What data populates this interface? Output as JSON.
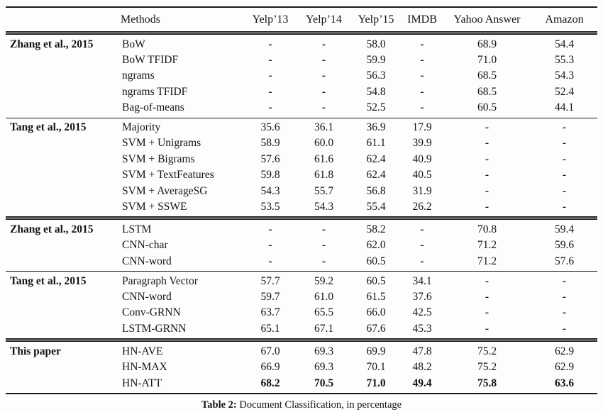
{
  "page": {
    "caption": {
      "label": "Table 2:",
      "text": "Document Classification, in percentage"
    }
  },
  "table": {
    "header": {
      "group_col": "",
      "method_col": "Methods",
      "datasets": [
        "Yelp’13",
        "Yelp’14",
        "Yelp’15",
        "IMDB",
        "Yahoo Answer",
        "Amazon"
      ]
    },
    "missing_value_symbol": "-",
    "groups": [
      {
        "label": "Zhang et al., 2015",
        "separator_above": "none",
        "rows": [
          {
            "method": "BoW",
            "values": [
              "-",
              "-",
              "58.0",
              "-",
              "68.9",
              "54.4"
            ],
            "bold": false
          },
          {
            "method": "BoW TFIDF",
            "values": [
              "-",
              "-",
              "59.9",
              "-",
              "71.0",
              "55.3"
            ],
            "bold": false
          },
          {
            "method": "ngrams",
            "values": [
              "-",
              "-",
              "56.3",
              "-",
              "68.5",
              "54.3"
            ],
            "bold": false
          },
          {
            "method": "ngrams TFIDF",
            "values": [
              "-",
              "-",
              "54.8",
              "-",
              "68.5",
              "52.4"
            ],
            "bold": false
          },
          {
            "method": "Bag-of-means",
            "values": [
              "-",
              "-",
              "52.5",
              "-",
              "60.5",
              "44.1"
            ],
            "bold": false
          }
        ]
      },
      {
        "label": "Tang et al., 2015",
        "separator_above": "single",
        "rows": [
          {
            "method": "Majority",
            "values": [
              "35.6",
              "36.1",
              "36.9",
              "17.9",
              "-",
              "-"
            ],
            "bold": false
          },
          {
            "method": "SVM + Unigrams",
            "values": [
              "58.9",
              "60.0",
              "61.1",
              "39.9",
              "-",
              "-"
            ],
            "bold": false
          },
          {
            "method": "SVM + Bigrams",
            "values": [
              "57.6",
              "61.6",
              "62.4",
              "40.9",
              "-",
              "-"
            ],
            "bold": false
          },
          {
            "method": "SVM + TextFeatures",
            "values": [
              "59.8",
              "61.8",
              "62.4",
              "40.5",
              "-",
              "-"
            ],
            "bold": false
          },
          {
            "method": "SVM + AverageSG",
            "values": [
              "54.3",
              "55.7",
              "56.8",
              "31.9",
              "-",
              "-"
            ],
            "bold": false
          },
          {
            "method": "SVM + SSWE",
            "values": [
              "53.5",
              "54.3",
              "55.4",
              "26.2",
              "-",
              "-"
            ],
            "bold": false
          }
        ]
      },
      {
        "label": "Zhang et al., 2015",
        "separator_above": "double",
        "rows": [
          {
            "method": "LSTM",
            "values": [
              "-",
              "-",
              "58.2",
              "-",
              "70.8",
              "59.4"
            ],
            "bold": false
          },
          {
            "method": "CNN-char",
            "values": [
              "-",
              "-",
              "62.0",
              "-",
              "71.2",
              "59.6"
            ],
            "bold": false
          },
          {
            "method": "CNN-word",
            "values": [
              "-",
              "-",
              "60.5",
              "-",
              "71.2",
              "57.6"
            ],
            "bold": false
          }
        ]
      },
      {
        "label": "Tang et al., 2015",
        "separator_above": "single",
        "rows": [
          {
            "method": "Paragraph Vector",
            "values": [
              "57.7",
              "59.2",
              "60.5",
              "34.1",
              "-",
              "-"
            ],
            "bold": false
          },
          {
            "method": "CNN-word",
            "values": [
              "59.7",
              "61.0",
              "61.5",
              "37.6",
              "-",
              "-"
            ],
            "bold": false
          },
          {
            "method": "Conv-GRNN",
            "values": [
              "63.7",
              "65.5",
              "66.0",
              "42.5",
              "-",
              "-"
            ],
            "bold": false
          },
          {
            "method": "LSTM-GRNN",
            "values": [
              "65.1",
              "67.1",
              "67.6",
              "45.3",
              "-",
              "-"
            ],
            "bold": false
          }
        ]
      },
      {
        "label": "This paper",
        "separator_above": "double",
        "rows": [
          {
            "method": "HN-AVE",
            "values": [
              "67.0",
              "69.3",
              "69.9",
              "47.8",
              "75.2",
              "62.9"
            ],
            "bold": false
          },
          {
            "method": "HN-MAX",
            "values": [
              "66.9",
              "69.3",
              "70.1",
              "48.2",
              "75.2",
              "62.9"
            ],
            "bold": false
          },
          {
            "method": "HN-ATT",
            "values": [
              "68.2",
              "70.5",
              "71.0",
              "49.4",
              "75.8",
              "63.6"
            ],
            "bold": true
          }
        ]
      }
    ]
  },
  "colors": {
    "text": "#141414",
    "rule": "#1c1c1c",
    "background": "#fdfdfd"
  }
}
